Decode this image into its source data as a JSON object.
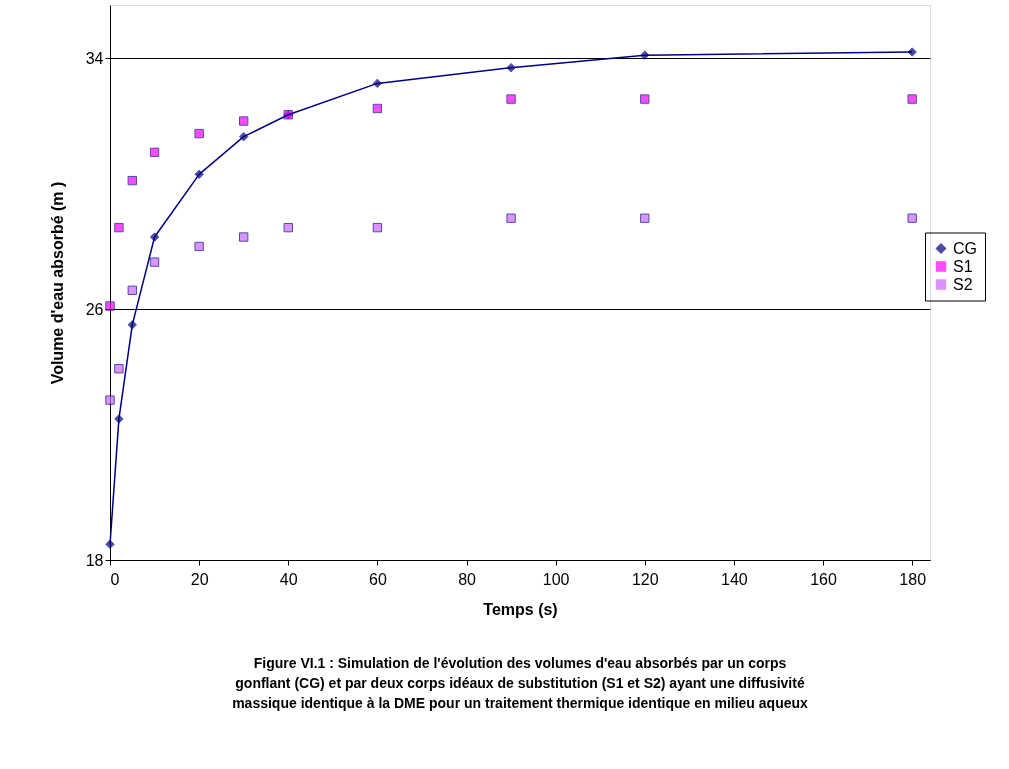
{
  "chart_data": {
    "type": "line",
    "xlabel": "Temps (s)",
    "ylabel": "Volume d'eau absorbé (m )",
    "x": [
      0,
      2,
      5,
      10,
      20,
      30,
      40,
      60,
      90,
      120,
      180
    ],
    "series": [
      {
        "name": "CG",
        "type": "line",
        "marker": "diamond",
        "color": "#000080",
        "values": [
          18.5,
          22.5,
          25.5,
          28.3,
          30.3,
          31.5,
          32.2,
          33.2,
          33.7,
          34.1,
          34.2
        ]
      },
      {
        "name": "S1",
        "type": "scatter",
        "marker": "square",
        "color": "#ff00ff",
        "values": [
          26.1,
          28.6,
          30.1,
          31.0,
          31.6,
          32.0,
          32.2,
          32.4,
          32.7,
          32.7,
          32.7
        ]
      },
      {
        "name": "S2",
        "type": "scatter",
        "marker": "square",
        "color": "#cc66ff",
        "values": [
          23.1,
          24.1,
          26.6,
          27.5,
          28.0,
          28.3,
          28.6,
          28.6,
          28.9,
          28.9,
          28.9
        ]
      }
    ],
    "xlim": [
      0,
      184
    ],
    "xticks": [
      0,
      20,
      40,
      60,
      80,
      100,
      120,
      140,
      160,
      180
    ],
    "ylim": [
      18,
      35.7
    ],
    "yticks": [
      18,
      26,
      34
    ],
    "grid": "y",
    "legend": "right",
    "annotations": [
      "Figure VI.1 : Simulation de l'évolution des volumes d'eau absorbés par un corps",
      "gonflant (CG) et par deux corps idéaux de substitution (S1 et S2) ayant une diffusivité",
      "massique identique à la DME pour un traitement thermique identique en milieu aqueux"
    ]
  }
}
